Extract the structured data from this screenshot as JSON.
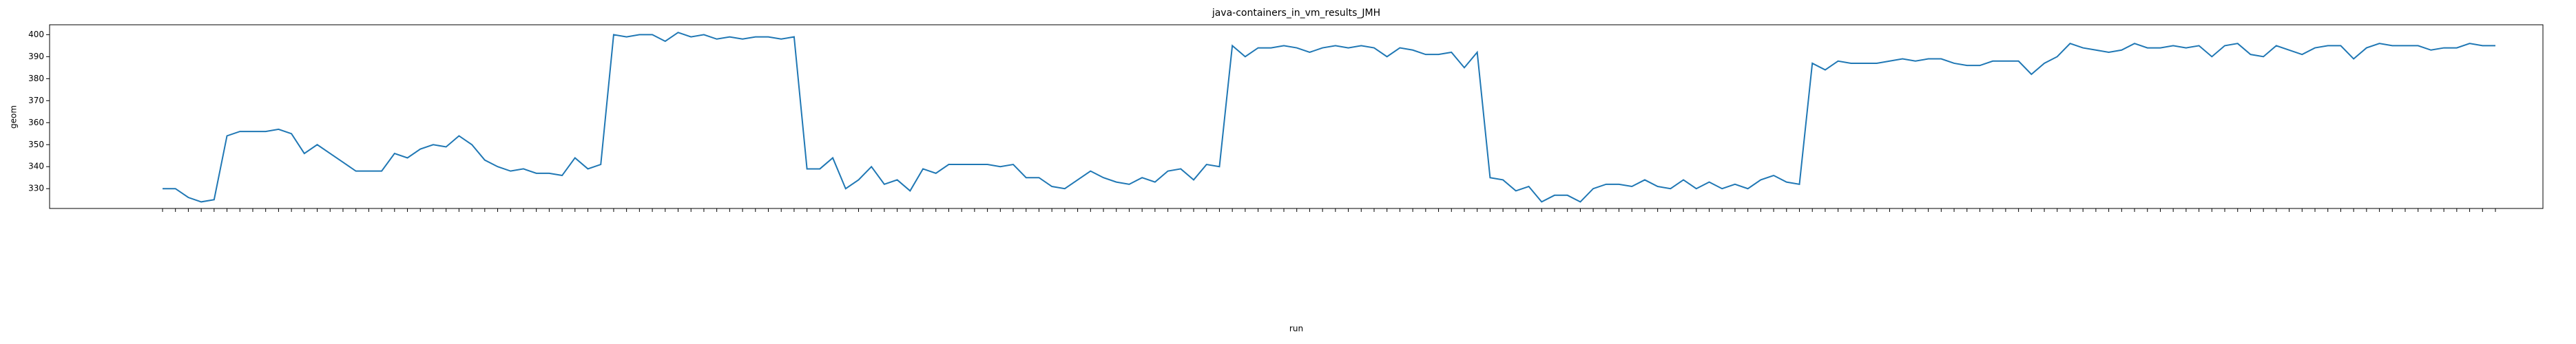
{
  "chart_data": {
    "type": "line",
    "title": "java-containers_in_vm_results_JMH",
    "xlabel": "run",
    "ylabel": "geom",
    "categories": [
      null,
      null,
      null,
      null,
      null,
      null,
      null,
      null,
      null,
      null,
      null,
      null,
      null,
      null,
      null,
      null,
      null,
      null,
      null,
      null,
      null,
      null,
      null,
      null,
      null,
      null,
      null,
      null,
      null,
      null,
      null,
      null,
      null,
      null,
      null,
      null,
      null,
      null,
      null,
      null,
      null,
      null,
      null,
      null,
      null,
      null,
      null,
      null,
      null,
      null,
      null,
      null,
      null,
      null,
      null,
      null,
      null,
      null,
      null,
      null,
      null,
      null,
      null,
      null,
      null,
      null,
      null,
      null,
      null,
      null,
      null,
      null,
      null,
      null,
      null,
      null,
      null,
      null,
      null,
      null,
      null,
      null,
      null,
      null,
      null,
      null,
      null,
      null,
      null,
      null,
      null,
      null,
      null,
      null,
      null,
      null,
      null,
      null,
      null,
      null,
      null,
      null,
      null,
      null,
      null,
      null,
      null,
      null,
      null,
      null,
      null,
      null,
      null,
      null,
      null,
      null,
      null,
      null,
      null,
      null,
      null,
      null,
      null,
      null,
      null,
      null,
      null,
      null,
      null,
      null,
      null,
      null,
      null,
      null,
      null,
      null,
      null,
      null,
      null,
      null,
      null,
      null,
      null,
      null,
      null,
      null,
      null,
      null,
      null,
      null,
      null,
      null,
      null,
      null,
      null,
      null,
      null,
      null,
      null,
      null,
      null,
      null,
      null,
      null,
      null,
      null,
      null,
      null,
      null,
      null,
      null,
      null,
      null,
      null,
      null,
      null,
      null,
      null,
      null,
      null,
      null,
      null
    ],
    "series": [
      {
        "name": "geom",
        "color": "#1f77b4",
        "values": [
          330,
          330,
          326,
          324,
          325,
          354,
          356,
          356,
          356,
          357,
          355,
          346,
          350,
          346,
          342,
          338,
          338,
          338,
          346,
          344,
          348,
          350,
          349,
          354,
          350,
          343,
          340,
          338,
          339,
          337,
          337,
          336,
          344,
          339,
          341,
          400,
          399,
          400,
          400,
          397,
          401,
          399,
          400,
          398,
          399,
          398,
          399,
          399,
          398,
          399,
          339,
          339,
          344,
          330,
          334,
          340,
          332,
          334,
          329,
          339,
          337,
          341,
          341,
          341,
          341,
          340,
          341,
          335,
          335,
          331,
          330,
          334,
          338,
          335,
          333,
          332,
          335,
          333,
          338,
          339,
          334,
          341,
          340,
          395,
          390,
          394,
          394,
          395,
          394,
          392,
          394,
          395,
          394,
          395,
          394,
          390,
          394,
          393,
          391,
          391,
          392,
          385,
          392,
          335,
          334,
          329,
          331,
          324,
          327,
          327,
          324,
          330,
          332,
          332,
          331,
          334,
          331,
          330,
          334,
          330,
          333,
          330,
          332,
          330,
          334,
          336,
          333,
          332,
          387,
          384,
          388,
          387,
          387,
          387,
          388,
          389,
          388,
          389,
          389,
          387,
          386,
          386,
          388,
          388,
          388,
          382,
          387,
          390,
          396,
          394,
          393,
          392,
          393,
          396,
          394,
          394,
          395,
          394,
          395,
          390,
          395,
          396,
          391,
          390,
          395,
          393,
          391,
          394,
          395,
          395,
          389,
          394,
          396,
          395,
          395,
          395,
          393,
          394,
          394,
          396,
          395,
          395
        ]
      }
    ],
    "ylim": [
      321,
      404.5
    ],
    "yticks": [
      330,
      340,
      350,
      360,
      370,
      380,
      390,
      400
    ],
    "grid": false
  }
}
